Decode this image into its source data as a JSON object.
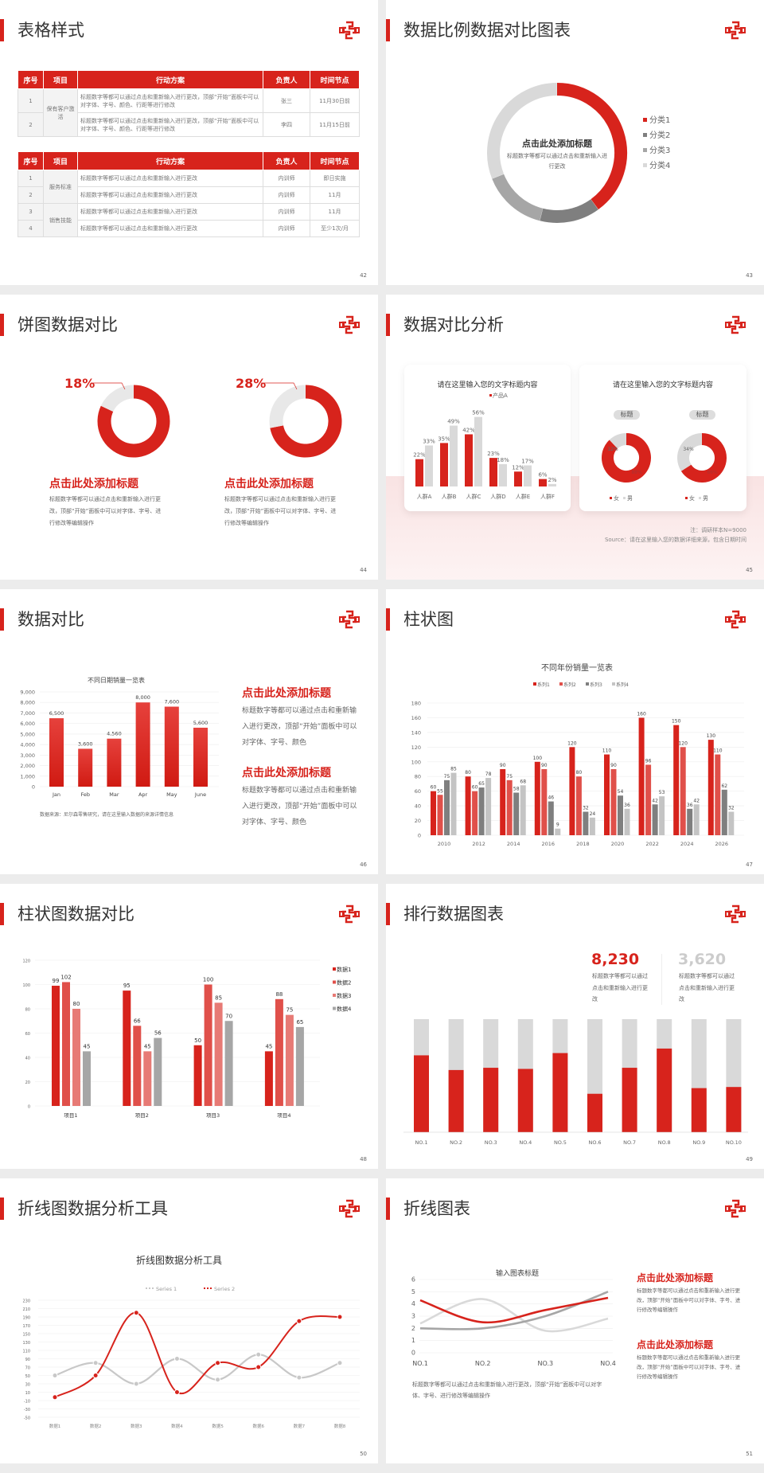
{
  "colors": {
    "accent": "#d7231c",
    "red2": "#e0504a",
    "red3": "#e77a75",
    "gray_dark": "#7f7f7f",
    "gray_mid": "#a6a6a6",
    "gray_light": "#d9d9d9"
  },
  "logo_icon": "brand-knot-logo",
  "slides": [
    {
      "title": "表格样式",
      "page": "42",
      "table_headers": [
        "序号",
        "项目",
        "行动方案",
        "负责人",
        "时间节点"
      ],
      "table1": {
        "group": "保有客户激活",
        "rows": [
          [
            "1",
            "标题数字等都可以通过点击和重新输入进行更改，顶部“开始”面板中可以对字体、字号、颜色、行距等进行修改",
            "张三",
            "11月30日前"
          ],
          [
            "2",
            "标题数字等都可以通过点击和重新输入进行更改，顶部“开始”面板中可以对字体、字号、颜色、行距等进行修改",
            "李四",
            "11月15日前"
          ]
        ]
      },
      "table2": {
        "groups": [
          "服务标准",
          "销售技能"
        ],
        "rows": [
          [
            "1",
            "标题数字等都可以通过点击和重新输入进行更改",
            "内训师",
            "即日实施"
          ],
          [
            "2",
            "标题数字等都可以通过点击和重新输入进行更改",
            "内训师",
            "11月"
          ],
          [
            "3",
            "标题数字等都可以通过点击和重新输入进行更改",
            "内训师",
            "11月"
          ],
          [
            "4",
            "标题数字等都可以通过点击和重新输入进行更改",
            "内训师",
            "至少1次/月"
          ]
        ]
      }
    },
    {
      "title": "数据比例数据对比图表",
      "page": "43",
      "center_title": "点击此处添加标题",
      "center_text": "标题数字等都可以通过点击和重新输入进行更改"
    },
    {
      "title": "饼图数据对比",
      "page": "44",
      "items": [
        {
          "pct": "18%",
          "heading": "点击此处添加标题",
          "text": "标题数字等都可以通过点击和重新输入进行更改，顶部“开始”面板中可以对字体、字号、进行修改等编辑操作"
        },
        {
          "pct": "28%",
          "heading": "点击此处添加标题",
          "text": "标题数字等都可以通过点击和重新输入进行更改，顶部“开始”面板中可以对字体、字号、进行修改等编辑操作"
        }
      ]
    },
    {
      "title": "数据对比分析",
      "page": "45",
      "card1_title": "请在这里输入您的文字标题内容",
      "card2_title": "请在这里输入您的文字标题内容",
      "pill": "标题",
      "note": "注：调研样本N=9000",
      "source": "Source：请在这里输入您的数据详细来源，包含日期时间"
    },
    {
      "title": "数据对比",
      "page": "46",
      "source": "数据来源：尼尔森零售研究，请在这里输入数据的来源详情信息",
      "blocks": [
        {
          "heading": "点击此处添加标题",
          "text": "标题数字等都可以通过点击和重新输入进行更改，顶部“开始”面板中可以对字体、字号、颜色"
        },
        {
          "heading": "点击此处添加标题",
          "text": "标题数字等都可以通过点击和重新输入进行更改，顶部“开始”面板中可以对字体、字号、颜色"
        }
      ]
    },
    {
      "title": "柱状图",
      "page": "47"
    },
    {
      "title": "柱状图数据对比",
      "page": "48"
    },
    {
      "title": "排行数据图表",
      "page": "49",
      "stats": [
        {
          "value": "8,230",
          "text": "标题数字等都可以通过点击和重新输入进行更改"
        },
        {
          "value": "3,620",
          "text": "标题数字等都可以通过点击和重新输入进行更改"
        }
      ]
    },
    {
      "title": "折线图数据分析工具",
      "page": "50"
    },
    {
      "title": "折线图表",
      "page": "51",
      "bottom_text": "标题数字等都可以通过点击和重新输入进行更改，顶部“开始”面板中可以对字体、字号、进行修改等编辑操作",
      "blocks": [
        {
          "heading": "点击此处添加标题",
          "text": "标题数字等都可以通过点击和重新输入进行更改，顶部“开始”面板中可以对字体、字号、进行修改等编辑操作"
        },
        {
          "heading": "点击此处添加标题",
          "text": "标题数字等都可以通过点击和重新输入进行更改，顶部“开始”面板中可以对字体、字号、进行修改等编辑操作"
        }
      ]
    }
  ],
  "chart_data": [
    {
      "id": "c43",
      "type": "pie",
      "donut": true,
      "categories": [
        "分类1",
        "分类2",
        "分类3",
        "分类4"
      ],
      "values": [
        40,
        14,
        15,
        31
      ],
      "legend": "right"
    },
    {
      "id": "c44a",
      "type": "pie",
      "donut": true,
      "values": [
        82,
        18
      ]
    },
    {
      "id": "c44b",
      "type": "pie",
      "donut": true,
      "values": [
        72,
        28
      ]
    },
    {
      "id": "c45bar",
      "type": "bar",
      "categories": [
        "人群A",
        "人群B",
        "人群C",
        "人群D",
        "人群E",
        "人群F"
      ],
      "series": [
        {
          "name": "产品A",
          "values": [
            22,
            35,
            42,
            23,
            12,
            6
          ]
        },
        {
          "values": [
            33,
            49,
            56,
            18,
            17,
            2
          ]
        }
      ],
      "unit": "%",
      "legend": "top-right"
    },
    {
      "id": "c45d1",
      "type": "pie",
      "donut": true,
      "categories": [
        "女",
        "男"
      ],
      "values": [
        88,
        12
      ],
      "labels": [
        "88%",
        "12%"
      ]
    },
    {
      "id": "c45d2",
      "type": "pie",
      "donut": true,
      "categories": [
        "女",
        "男"
      ],
      "values": [
        66,
        34
      ],
      "labels": [
        "66%",
        "34%"
      ]
    },
    {
      "id": "c46",
      "type": "bar",
      "title": "不同日期销量一览表",
      "categories": [
        "Jan",
        "Feb",
        "Mar",
        "Apr",
        "May",
        "June"
      ],
      "values": [
        6500,
        3600,
        4560,
        8000,
        7600,
        5600
      ],
      "value_labels": [
        "6,500",
        "3,600",
        "4,560",
        "8,000",
        "7,600",
        "5,600"
      ],
      "ylim": [
        0,
        9000
      ],
      "yticks": [
        "0",
        "1,000",
        "2,000",
        "3,000",
        "4,000",
        "5,000",
        "6,000",
        "7,000",
        "8,000",
        "9,000"
      ],
      "grid": true
    },
    {
      "id": "c47",
      "type": "bar",
      "title": "不同年份销量一览表",
      "categories": [
        "2010",
        "2012",
        "2014",
        "2016",
        "2018",
        "2020",
        "2022",
        "2024",
        "2026"
      ],
      "series": [
        {
          "name": "系列1",
          "values": [
            60,
            80,
            90,
            100,
            120,
            110,
            160,
            150,
            130
          ]
        },
        {
          "name": "系列2",
          "values": [
            55,
            60,
            75,
            90,
            80,
            90,
            96,
            120,
            110
          ]
        },
        {
          "name": "系列3",
          "values": [
            75,
            65,
            58,
            46,
            32,
            54,
            42,
            36,
            62
          ]
        },
        {
          "name": "系列4",
          "values": [
            85,
            78,
            68,
            9,
            24,
            36,
            53,
            42,
            32
          ]
        }
      ],
      "ylim": [
        0,
        180
      ],
      "yticks": [
        "0",
        "20",
        "40",
        "60",
        "80",
        "100",
        "120",
        "140",
        "160",
        "180"
      ],
      "legend": "top",
      "grid": true
    },
    {
      "id": "c48",
      "type": "bar",
      "categories": [
        "项目1",
        "项目2",
        "项目3",
        "项目4"
      ],
      "series": [
        {
          "name": "数据1",
          "values": [
            99,
            95,
            50,
            45
          ]
        },
        {
          "name": "数据2",
          "values": [
            102,
            66,
            100,
            88
          ]
        },
        {
          "name": "数据3",
          "values": [
            80,
            45,
            85,
            75
          ]
        },
        {
          "name": "数据4",
          "values": [
            45,
            56,
            70,
            65
          ]
        }
      ],
      "ylim": [
        0,
        120
      ],
      "yticks": [
        "0",
        "20",
        "40",
        "60",
        "80",
        "100",
        "120"
      ],
      "legend": "right",
      "grid": true
    },
    {
      "id": "c49",
      "type": "bar",
      "stacked": true,
      "categories": [
        "NO.1",
        "NO.2",
        "NO.3",
        "NO.4",
        "NO.5",
        "NO.6",
        "NO.7",
        "NO.8",
        "NO.9",
        "NO.10"
      ],
      "values_fraction": [
        0.68,
        0.55,
        0.57,
        0.56,
        0.7,
        0.34,
        0.57,
        0.74,
        0.39,
        0.4
      ]
    },
    {
      "id": "c50",
      "type": "line",
      "title": "折线图数据分析工具",
      "categories": [
        "数据1",
        "数据2",
        "数据3",
        "数据4",
        "数据5",
        "数据6",
        "数据7",
        "数据8"
      ],
      "series": [
        {
          "name": "Series 1",
          "values": [
            50,
            80,
            30,
            90,
            40,
            100,
            45,
            80
          ]
        },
        {
          "name": "Series 2",
          "values": [
            -2,
            50,
            200,
            10,
            80,
            70,
            180,
            190
          ]
        }
      ],
      "ylim": [
        -50,
        230
      ],
      "yticks": [
        "-50",
        "-30",
        "-10",
        "10",
        "30",
        "50",
        "70",
        "90",
        "110",
        "130",
        "150",
        "170",
        "190",
        "210",
        "230"
      ],
      "legend": "top",
      "smooth": true
    },
    {
      "id": "c51",
      "type": "line",
      "title": "输入图表标题",
      "categories": [
        "NO.1",
        "NO.2",
        "NO.3",
        "NO.4"
      ],
      "series": [
        {
          "values": [
            4.3,
            2.5,
            3.5,
            4.5
          ]
        },
        {
          "values": [
            2,
            2,
            3,
            5
          ]
        },
        {
          "values": [
            2.4,
            4.4,
            1.8,
            2.8
          ]
        }
      ],
      "ylim": [
        0,
        6
      ],
      "yticks": [
        "0",
        "1",
        "2",
        "3",
        "4",
        "5",
        "6"
      ],
      "smooth": true,
      "grid": true
    }
  ]
}
